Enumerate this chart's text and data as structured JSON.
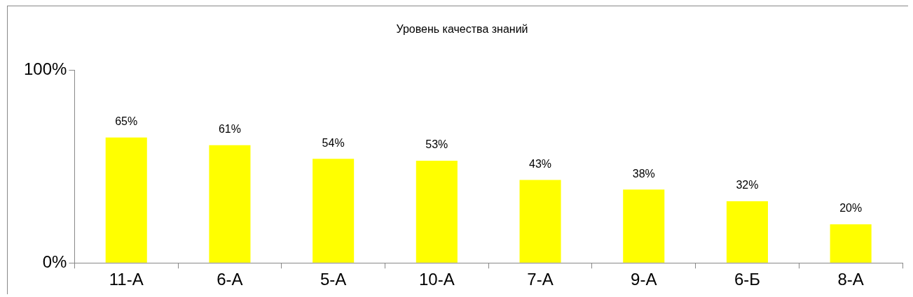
{
  "chart_data": {
    "type": "bar",
    "title": "Уровень качества знаний",
    "categories": [
      "11-А",
      "6-А",
      "5-А",
      "10-А",
      "7-А",
      "9-А",
      "6-Б",
      "8-А"
    ],
    "values": [
      65,
      61,
      54,
      53,
      43,
      38,
      32,
      20
    ],
    "value_labels": [
      "65%",
      "61%",
      "54%",
      "53%",
      "43%",
      "38%",
      "32%",
      "20%"
    ],
    "color": "#ffff00",
    "ylim": [
      0,
      100
    ],
    "yticks": [
      {
        "value": 0,
        "label": "0%"
      },
      {
        "value": 100,
        "label": "100%"
      }
    ],
    "grid": false,
    "legend": false
  }
}
